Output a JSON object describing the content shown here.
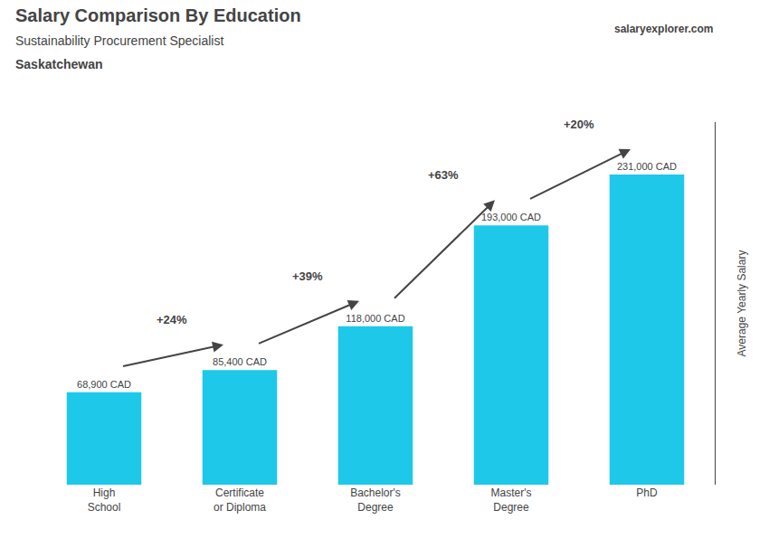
{
  "chart_data": {
    "type": "bar",
    "title": "Salary Comparison By Education",
    "subtitle": [
      "Sustainability Procurement Specialist",
      "Saskatchewan"
    ],
    "ylabel": "Average Yearly Salary",
    "categories": [
      "High\nSchool",
      "Certificate\nor Diploma",
      "Bachelor's\nDegree",
      "Master's\nDegree",
      "PhD"
    ],
    "values": [
      68900,
      85400,
      118000,
      193000,
      231000
    ],
    "value_labels": [
      "68,900 CAD",
      "85,400 CAD",
      "118,000 CAD",
      "193,000 CAD",
      "231,000 CAD"
    ],
    "data_labels": true,
    "color": "#1EC8E8",
    "ylim": [
      0,
      270000
    ],
    "yticks": [],
    "tick_labels": "x",
    "grid": false,
    "annotations": [
      {
        "text": "salaryexplorer.com"
      },
      {
        "text": "+24%",
        "between": [
          "High\nSchool",
          "Certificate\nor Diploma"
        ]
      },
      {
        "text": "+39%",
        "between": [
          "Certificate\nor Diploma",
          "Bachelor's\nDegree"
        ]
      },
      {
        "text": "+63%",
        "between": [
          "Bachelor's\nDegree",
          "Master's\nDegree"
        ]
      },
      {
        "text": "+20%",
        "between": [
          "Master's\nDegree",
          "PhD"
        ]
      }
    ]
  }
}
